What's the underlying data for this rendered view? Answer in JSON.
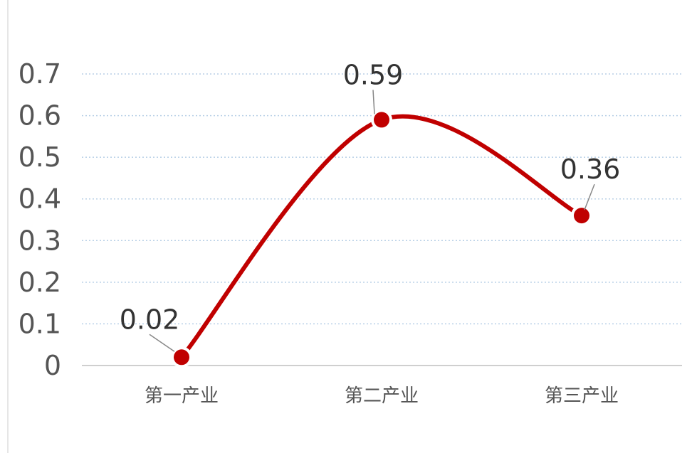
{
  "chart_data": {
    "type": "line",
    "categories": [
      "第一产业",
      "第二产业",
      "第三产业"
    ],
    "series": [
      {
        "values": [
          0.02,
          0.59,
          0.36
        ]
      }
    ],
    "y_ticks": [
      "0",
      "0.1",
      "0.2",
      "0.3",
      "0.4",
      "0.5",
      "0.6",
      "0.7"
    ],
    "ylim": [
      0,
      0.7
    ],
    "data_labels": [
      "0.02",
      "0.59",
      "0.36"
    ],
    "grid": true,
    "smooth": true,
    "line_color": "#c00000",
    "grid_color": "#b8cfe6"
  }
}
